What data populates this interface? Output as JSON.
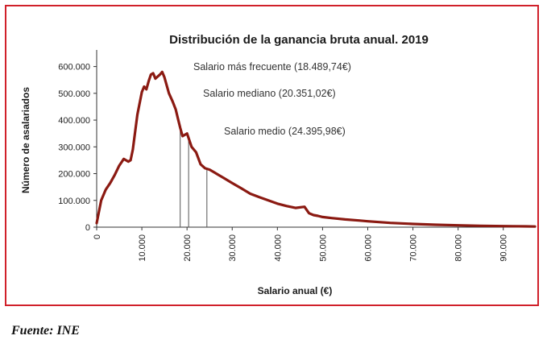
{
  "source_note": "Fuente: INE",
  "colors": {
    "frame_border": "#d0202a",
    "series_line": "#8b1a12",
    "marker_line": "#555555"
  },
  "chart_data": {
    "type": "line",
    "title": "Distribución de la ganancia bruta anual. 2019",
    "xlabel": "Salario anual (€)",
    "ylabel": "Número de asalariados",
    "xlim": [
      0,
      97000
    ],
    "ylim": [
      0,
      650000
    ],
    "x_ticks": [
      0,
      10000,
      20000,
      30000,
      40000,
      50000,
      60000,
      70000,
      80000,
      90000
    ],
    "x_tick_labels": [
      "0",
      "10.000",
      "20.000",
      "30.000",
      "40.000",
      "50.000",
      "60.000",
      "70.000",
      "80.000",
      "90.000"
    ],
    "y_ticks": [
      0,
      100000,
      200000,
      300000,
      400000,
      500000,
      600000
    ],
    "y_tick_labels": [
      "0",
      "100.000",
      "200.000",
      "300.000",
      "400.000",
      "500.000",
      "600.000"
    ],
    "grid": false,
    "series": [
      {
        "x": [
          0,
          1000,
          2000,
          3000,
          4000,
          5000,
          6000,
          7000,
          7500,
          8000,
          9000,
          10000,
          10500,
          11000,
          11500,
          12000,
          12500,
          13000,
          14000,
          14500,
          15000,
          16000,
          16800,
          17500,
          18000,
          18500,
          19000,
          20000,
          21000,
          22000,
          23000,
          24000,
          25000,
          26000,
          27000,
          28000,
          30000,
          32000,
          34000,
          36000,
          38000,
          40000,
          42000,
          44000,
          46000,
          47000,
          48000,
          49000,
          50000,
          52000,
          55000,
          58000,
          60000,
          65000,
          70000,
          75000,
          80000,
          85000,
          90000,
          95000,
          97000
        ],
        "y": [
          15000,
          100000,
          140000,
          165000,
          195000,
          230000,
          255000,
          245000,
          250000,
          290000,
          420000,
          505000,
          525000,
          515000,
          545000,
          570000,
          575000,
          555000,
          570000,
          580000,
          560000,
          500000,
          470000,
          440000,
          405000,
          370000,
          340000,
          350000,
          300000,
          280000,
          235000,
          220000,
          215000,
          205000,
          195000,
          185000,
          165000,
          145000,
          125000,
          112000,
          100000,
          88000,
          79000,
          72000,
          76000,
          52000,
          45000,
          42000,
          38000,
          34000,
          29000,
          25000,
          22000,
          16000,
          12000,
          9000,
          7000,
          5000,
          4000,
          3000,
          2500
        ]
      }
    ],
    "annotations": [
      {
        "label": "Salario más frecuente (18.489,74€)",
        "x": 18489.74
      },
      {
        "label": "Salario mediano (20.351,02€)",
        "x": 20351.02
      },
      {
        "label": "Salario medio (24.395,98€)",
        "x": 24395.98
      }
    ]
  }
}
